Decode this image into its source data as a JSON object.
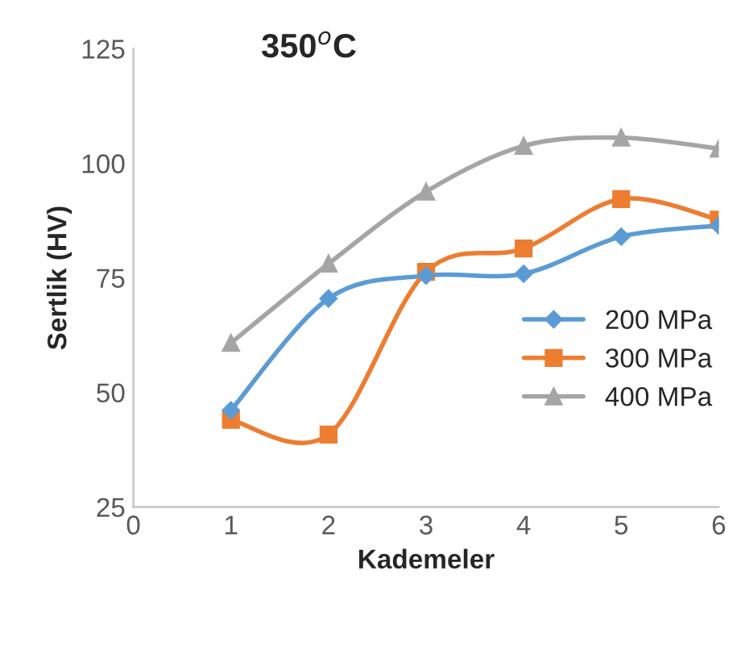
{
  "chart_data": {
    "type": "line",
    "title": "350$^{o}$C",
    "xlabel": "Kademeler",
    "ylabel": "Sertlik (HV)",
    "x": [
      1,
      2,
      3,
      4,
      5,
      6
    ],
    "series": [
      {
        "name": "200 MPa",
        "color": "#5b9bd5",
        "marker": "diamond",
        "values": [
          46.1,
          70.5,
          75.5,
          75.9,
          84,
          86.4
        ]
      },
      {
        "name": "300 MPa",
        "color": "#ed7d31",
        "marker": "square",
        "values": [
          44,
          40.8,
          76.3,
          81.4,
          92.2,
          87.7
        ]
      },
      {
        "name": "400 MPa",
        "color": "#a5a5a5",
        "marker": "triangle",
        "values": [
          60.8,
          78.1,
          93.8,
          103.8,
          105.6,
          103.2
        ]
      }
    ],
    "xlim": [
      0,
      6
    ],
    "xticks": [
      0,
      1,
      2,
      3,
      4,
      5,
      6
    ],
    "ylim": [
      25,
      125
    ],
    "yticks": [
      25,
      50,
      75,
      100,
      125
    ],
    "grid": false,
    "legend": "right",
    "line_style": "solid"
  }
}
